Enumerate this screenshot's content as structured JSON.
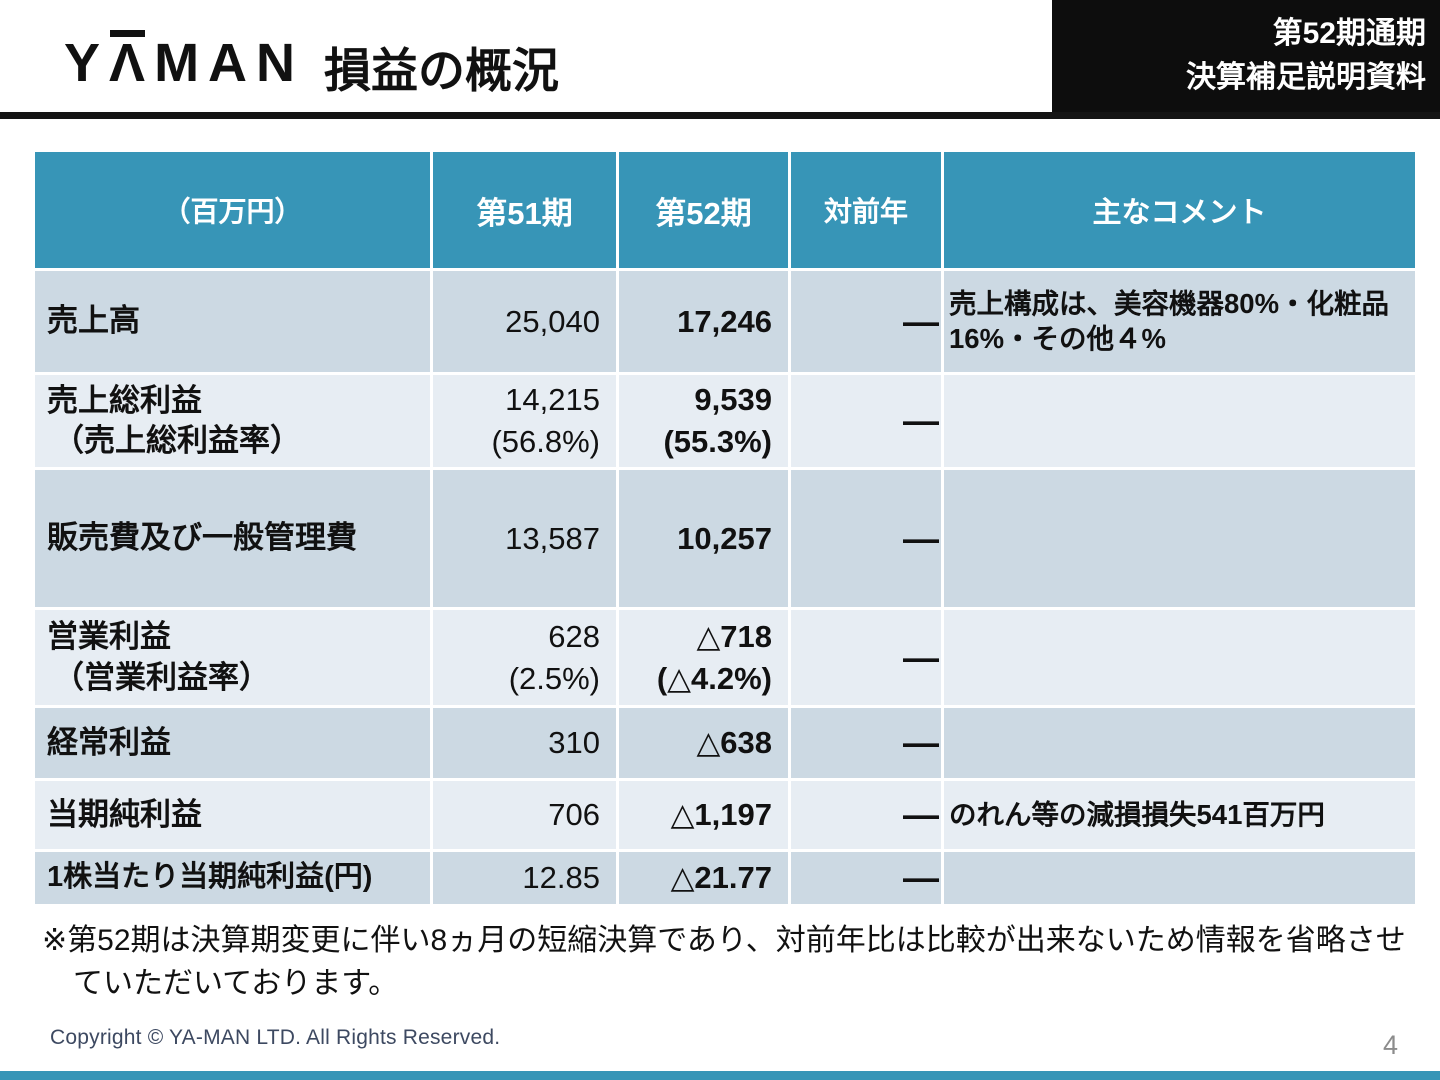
{
  "header": {
    "logo": {
      "pre": "Y",
      "accent": "Λ",
      "post": "MAN"
    },
    "title": "損益の概況",
    "badge": {
      "line1": "第52期通期",
      "line2": "決算補足説明資料"
    }
  },
  "table": {
    "unit_header": "（百万円）",
    "columns": {
      "period51": "第51期",
      "period52": "第52期",
      "yoy": "対前年",
      "comment": "主なコメント"
    },
    "rows": [
      {
        "label": "売上高",
        "label_sub": "",
        "v51": "25,040",
        "v51_sub": "",
        "v52": "17,246",
        "v52_sub": "",
        "yoy": "―",
        "comment": "売上構成は、美容機器80%・化粧品16%・その他４%"
      },
      {
        "label": "売上総利益",
        "label_sub": "（売上総利益率）",
        "v51": "14,215",
        "v51_sub": "(56.8%)",
        "v52": "9,539",
        "v52_sub": "(55.3%)",
        "yoy": "―",
        "comment": ""
      },
      {
        "label": "販売費及び一般管理費",
        "label_sub": "",
        "v51": "13,587",
        "v51_sub": "",
        "v52": "10,257",
        "v52_sub": "",
        "yoy": "―",
        "comment": ""
      },
      {
        "label": "営業利益",
        "label_sub": "（営業利益率）",
        "v51": "628",
        "v51_sub": "(2.5%)",
        "v52": "△718",
        "v52_sub": "(△4.2%)",
        "yoy": "―",
        "comment": ""
      },
      {
        "label": "経常利益",
        "label_sub": "",
        "v51": "310",
        "v51_sub": "",
        "v52": "△638",
        "v52_sub": "",
        "yoy": "―",
        "comment": ""
      },
      {
        "label": "当期純利益",
        "label_sub": "",
        "v51": "706",
        "v51_sub": "",
        "v52": "△1,197",
        "v52_sub": "",
        "yoy": "―",
        "comment": "のれん等の減損損失541百万円"
      },
      {
        "label": "1株当たり当期純利益(円)",
        "label_sub": "",
        "v51": "12.85",
        "v51_sub": "",
        "v52": "△21.77",
        "v52_sub": "",
        "yoy": "―",
        "comment": ""
      }
    ]
  },
  "footnote": "※第52期は決算期変更に伴い8ヵ月の短縮決算であり、対前年比は比較が出来ないため情報を省略させていただいております。",
  "footer": {
    "copyright": "Copyright © YA-MAN LTD. All Rights Reserved.",
    "page_number": "4"
  },
  "colors": {
    "accent_teal": "#3795b7",
    "row_dark": "#ccd9e3",
    "row_light": "#e7edf3",
    "header_black": "#0d0d0d"
  }
}
